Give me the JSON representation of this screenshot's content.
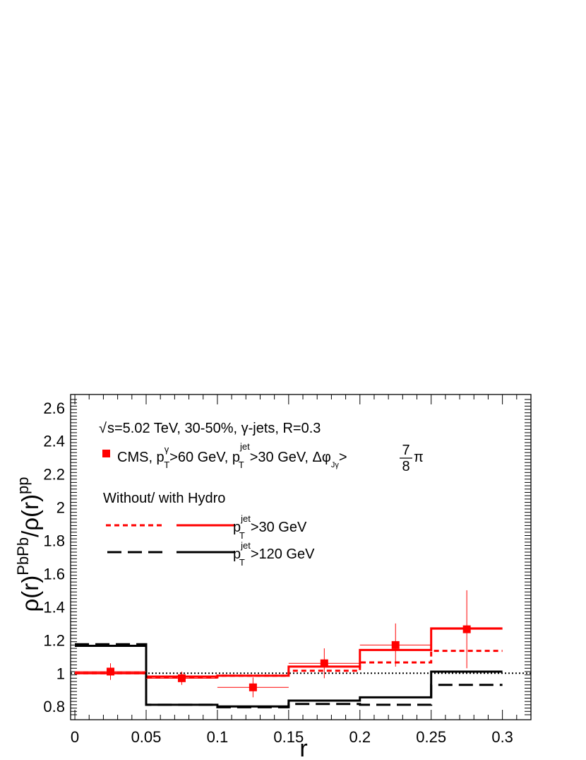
{
  "chart_data": {
    "type": "line",
    "xlabel": "r",
    "ylabel": {
      "main": "ρ(r)",
      "num_sup": "PbPb",
      "slash": "/",
      "den": "ρ(r)",
      "den_sup": "pp"
    },
    "xlim": [
      -0.003,
      0.32
    ],
    "ylim": [
      0.72,
      2.68
    ],
    "x_ticks": [
      {
        "value": 0,
        "label": "0"
      },
      {
        "value": 0.05,
        "label": "0.05"
      },
      {
        "value": 0.1,
        "label": "0.1"
      },
      {
        "value": 0.15,
        "label": "0.15"
      },
      {
        "value": 0.2,
        "label": "0.2"
      },
      {
        "value": 0.25,
        "label": "0.25"
      },
      {
        "value": 0.3,
        "label": "0.3"
      }
    ],
    "y_ticks": [
      {
        "value": 0.8,
        "label": "0.8"
      },
      {
        "value": 1.0,
        "label": "1"
      },
      {
        "value": 1.2,
        "label": "1.2"
      },
      {
        "value": 1.4,
        "label": "1.4"
      },
      {
        "value": 1.6,
        "label": "1.6"
      },
      {
        "value": 1.8,
        "label": "1.8"
      },
      {
        "value": 2.0,
        "label": "2"
      },
      {
        "value": 2.2,
        "label": "2.2"
      },
      {
        "value": 2.4,
        "label": "2.4"
      },
      {
        "value": 2.6,
        "label": "2.6"
      }
    ],
    "bin_edges": [
      0,
      0.05,
      0.1,
      0.15,
      0.2,
      0.25,
      0.3
    ],
    "reference_line": {
      "y": 1.0,
      "style": "dotted"
    },
    "series": [
      {
        "name": "pT^jet>30 GeV, without hydro",
        "color": "#ff0000",
        "style": "dashed-short",
        "values": [
          1.0,
          0.975,
          0.985,
          1.015,
          1.065,
          1.135
        ]
      },
      {
        "name": "pT^jet>30 GeV, with hydro",
        "color": "#ff0000",
        "style": "solid",
        "values": [
          1.0,
          0.98,
          0.985,
          1.04,
          1.14,
          1.27
        ]
      },
      {
        "name": "pT^jet>120 GeV, without hydro",
        "color": "#000000",
        "style": "dashed-long",
        "values": [
          1.175,
          0.81,
          0.795,
          0.815,
          0.81,
          0.93
        ]
      },
      {
        "name": "pT^jet>120 GeV, with hydro",
        "color": "#000000",
        "style": "solid",
        "values": [
          1.165,
          0.81,
          0.8,
          0.835,
          0.855,
          1.01
        ]
      }
    ],
    "data_points": {
      "name": "CMS",
      "color": "#ff0000",
      "points": [
        {
          "x": 0.025,
          "y": 1.01,
          "xerr": 0.025,
          "yerr": 0.05
        },
        {
          "x": 0.075,
          "y": 0.97,
          "xerr": 0.025,
          "yerr": 0.04
        },
        {
          "x": 0.125,
          "y": 0.915,
          "xerr": 0.025,
          "yerr": 0.06
        },
        {
          "x": 0.175,
          "y": 1.06,
          "xerr": 0.025,
          "yerr": 0.09
        },
        {
          "x": 0.225,
          "y": 1.17,
          "xerr": 0.025,
          "yerr": 0.13
        },
        {
          "x": 0.275,
          "y": 1.265,
          "xerr": 0.025,
          "yerr": 0.235
        }
      ]
    },
    "annotations": {
      "header_sqrt": "√",
      "header": "s=5.02 TeV, 30-50%, γ-jets, R=0.3",
      "cms": {
        "label_a": "CMS, p",
        "sup_gamma": "γ",
        "sub_T": "T",
        "label_b": ">60 GeV, p",
        "sup_jet": "jet",
        "label_c": ">30 GeV, Δφ",
        "sub_jgamma": "Jγ",
        "gt": ">",
        "frac_num": "7",
        "frac_den": "8",
        "pi": "π"
      },
      "hydro_title": "Without/  with Hydro",
      "legend_p": "p",
      "legend_sup": "jet",
      "legend_sub": "T",
      "legend_30": ">30 GeV",
      "legend_120": ">120 GeV"
    }
  }
}
